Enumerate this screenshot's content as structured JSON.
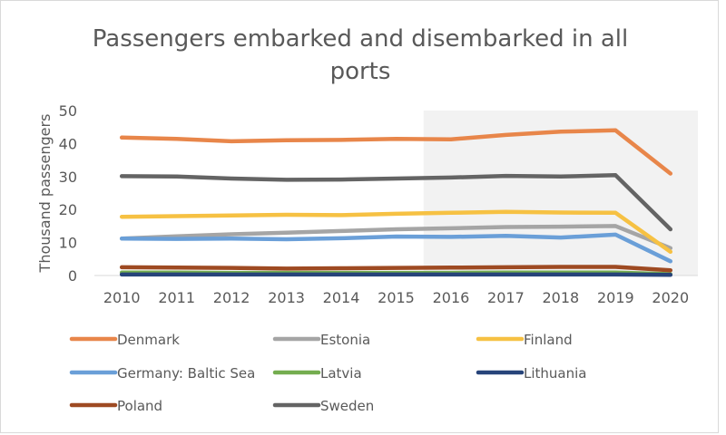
{
  "chart_data": {
    "type": "line",
    "title": "Passengers embarked and disembarked in all ports",
    "title_lines": [
      "Passengers embarked and disembarked in all",
      "ports"
    ],
    "xlabel": "",
    "ylabel": "Thousand passengers",
    "ylim": [
      0,
      50
    ],
    "yticks": [
      0,
      10,
      20,
      30,
      40,
      50
    ],
    "grid": false,
    "legend_position": "bottom",
    "highlight_region": {
      "from": "2016",
      "to": "2020",
      "color": "#f2f2f2"
    },
    "categories": [
      "2010",
      "2011",
      "2012",
      "2013",
      "2014",
      "2015",
      "2016",
      "2017",
      "2018",
      "2019",
      "2020"
    ],
    "series": [
      {
        "name": "Denmark",
        "color": "#e8864a",
        "values": [
          41.8,
          41.4,
          40.7,
          41.0,
          41.1,
          41.4,
          41.3,
          42.6,
          43.6,
          44.0,
          30.9
        ]
      },
      {
        "name": "Estonia",
        "color": "#a5a5a5",
        "values": [
          11.2,
          11.9,
          12.5,
          13.0,
          13.5,
          14.0,
          14.3,
          14.7,
          14.8,
          15.0,
          8.3
        ]
      },
      {
        "name": "Finland",
        "color": "#f6c143",
        "values": [
          17.8,
          18.0,
          18.2,
          18.4,
          18.3,
          18.7,
          19.0,
          19.3,
          19.1,
          19.0,
          7.2
        ]
      },
      {
        "name": "Germany: Baltic Sea",
        "color": "#6a9fd8",
        "values": [
          11.2,
          11.1,
          11.2,
          11.0,
          11.3,
          11.8,
          11.7,
          12.0,
          11.5,
          12.4,
          4.3
        ]
      },
      {
        "name": "Latvia",
        "color": "#74ad4f",
        "values": [
          0.9,
          0.9,
          0.8,
          0.8,
          0.8,
          0.8,
          0.8,
          0.9,
          0.9,
          0.9,
          0.4
        ]
      },
      {
        "name": "Lithuania",
        "color": "#27447a",
        "values": [
          0.3,
          0.3,
          0.3,
          0.3,
          0.3,
          0.3,
          0.3,
          0.3,
          0.3,
          0.3,
          0.2
        ]
      },
      {
        "name": "Poland",
        "color": "#9e4a22",
        "values": [
          2.5,
          2.4,
          2.3,
          2.1,
          2.2,
          2.3,
          2.4,
          2.5,
          2.6,
          2.6,
          1.6
        ]
      },
      {
        "name": "Sweden",
        "color": "#646464",
        "values": [
          30.1,
          30.0,
          29.4,
          29.0,
          29.1,
          29.4,
          29.7,
          30.2,
          30.0,
          30.4,
          14.0
        ]
      }
    ]
  }
}
